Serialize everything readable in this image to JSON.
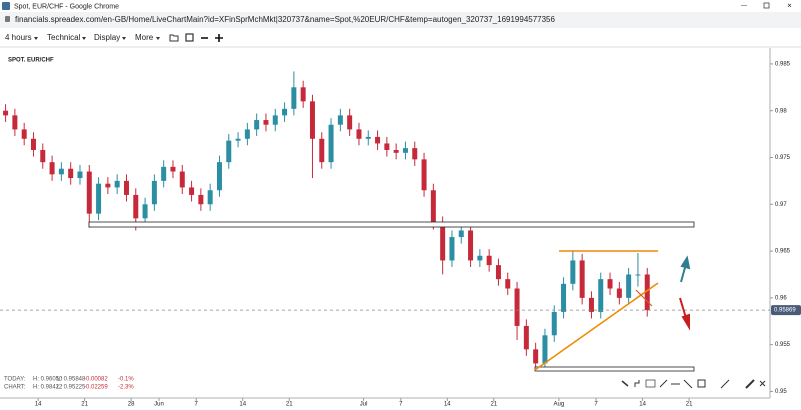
{
  "window": {
    "title": "Spot, EUR/CHF - Google Chrome",
    "url": "financials.spreadex.com/en-GB/Home/LiveChartMain?id=XFinSprMchMkt|320737&name=Spot,%20EUR/CHF&temp=autogen_320737_1691994577356"
  },
  "toolbar": {
    "interval": "4 hours",
    "technical": "Technical",
    "display": "Display",
    "more": "More"
  },
  "info_box": {
    "rows": [
      [
        "TODAY:",
        "H: 0.96050",
        "L: 0.95848",
        "-0.00082",
        "-0.1%"
      ],
      [
        "CHART:",
        "H: 0.98422",
        "L: 0.95225",
        "-0.02259",
        "-2.3%"
      ]
    ]
  },
  "chart_data": {
    "type": "candlestick",
    "title": "SPOT. EUR/CHF",
    "up_color": "#2b8ea3",
    "down_color": "#c62a3a",
    "x": [
      0,
      1,
      2,
      3,
      4,
      5,
      6,
      7,
      8,
      9,
      10,
      11,
      12,
      13,
      14,
      15,
      16,
      17,
      18,
      19,
      20,
      21,
      22,
      23,
      24,
      25,
      26,
      27,
      28,
      29,
      30,
      31,
      32,
      33,
      34,
      35,
      36,
      37,
      38,
      39,
      40,
      41,
      42,
      43,
      44,
      45,
      46,
      47,
      48,
      49,
      50,
      51,
      52,
      53,
      54,
      55,
      56,
      57,
      58,
      59,
      60,
      61,
      62,
      63,
      64,
      65,
      66,
      67,
      68,
      69
    ],
    "open": [
      0.98,
      0.9795,
      0.978,
      0.977,
      0.9758,
      0.9745,
      0.9732,
      0.9738,
      0.9728,
      0.9735,
      0.969,
      0.9722,
      0.9718,
      0.9725,
      0.971,
      0.9685,
      0.97,
      0.9725,
      0.974,
      0.9735,
      0.9718,
      0.971,
      0.97,
      0.9715,
      0.9745,
      0.9768,
      0.977,
      0.978,
      0.979,
      0.9785,
      0.9795,
      0.9802,
      0.9825,
      0.981,
      0.977,
      0.9745,
      0.9785,
      0.9795,
      0.978,
      0.977,
      0.9772,
      0.9765,
      0.9758,
      0.9755,
      0.976,
      0.9748,
      0.9715,
      0.968,
      0.964,
      0.9665,
      0.9672,
      0.964,
      0.9645,
      0.9635,
      0.962,
      0.961,
      0.957,
      0.9545,
      0.953,
      0.956,
      0.9585,
      0.9615,
      0.964,
      0.96,
      0.9585,
      0.962,
      0.961,
      0.96,
      0.9625,
      0.9625
    ],
    "high": [
      0.9807,
      0.9802,
      0.9787,
      0.9777,
      0.9765,
      0.9752,
      0.9745,
      0.9745,
      0.9742,
      0.9742,
      0.9729,
      0.9729,
      0.9732,
      0.9732,
      0.9717,
      0.9707,
      0.9732,
      0.9747,
      0.9747,
      0.9742,
      0.9725,
      0.9717,
      0.9722,
      0.9752,
      0.9775,
      0.9777,
      0.9787,
      0.9797,
      0.9797,
      0.9802,
      0.9809,
      0.9842,
      0.9832,
      0.9817,
      0.9777,
      0.9792,
      0.9802,
      0.9802,
      0.9787,
      0.9779,
      0.9779,
      0.9772,
      0.9765,
      0.9767,
      0.9767,
      0.9755,
      0.9722,
      0.9687,
      0.9672,
      0.9679,
      0.9679,
      0.9652,
      0.9652,
      0.9642,
      0.9627,
      0.9617,
      0.9577,
      0.9552,
      0.9567,
      0.9592,
      0.9622,
      0.965,
      0.9647,
      0.9607,
      0.9627,
      0.9627,
      0.9617,
      0.9632,
      0.9648,
      0.9632
    ],
    "low": [
      0.9788,
      0.9773,
      0.9763,
      0.9751,
      0.9738,
      0.9725,
      0.9725,
      0.9721,
      0.9721,
      0.9675,
      0.9683,
      0.9711,
      0.9711,
      0.9703,
      0.9672,
      0.9678,
      0.9693,
      0.9718,
      0.9728,
      0.9711,
      0.9703,
      0.9693,
      0.9693,
      0.9708,
      0.9738,
      0.9761,
      0.9763,
      0.9773,
      0.9778,
      0.9778,
      0.9788,
      0.9795,
      0.9803,
      0.9728,
      0.9738,
      0.9738,
      0.9778,
      0.9773,
      0.9763,
      0.9763,
      0.9758,
      0.9751,
      0.9748,
      0.9748,
      0.9741,
      0.9708,
      0.9673,
      0.9625,
      0.9633,
      0.9658,
      0.9633,
      0.9633,
      0.9628,
      0.9613,
      0.9603,
      0.9555,
      0.9538,
      0.95225,
      0.9523,
      0.9553,
      0.9578,
      0.9608,
      0.9593,
      0.9578,
      0.9578,
      0.9603,
      0.9593,
      0.9593,
      0.9612,
      0.958
    ],
    "close": [
      0.9795,
      0.978,
      0.977,
      0.9758,
      0.9745,
      0.9732,
      0.9738,
      0.9728,
      0.9735,
      0.969,
      0.9722,
      0.9718,
      0.9725,
      0.971,
      0.9685,
      0.97,
      0.9725,
      0.974,
      0.9735,
      0.9718,
      0.971,
      0.97,
      0.9715,
      0.9745,
      0.9768,
      0.977,
      0.978,
      0.979,
      0.9785,
      0.9795,
      0.9802,
      0.9825,
      0.981,
      0.977,
      0.9745,
      0.9785,
      0.9795,
      0.978,
      0.977,
      0.9772,
      0.9765,
      0.9758,
      0.9755,
      0.976,
      0.9748,
      0.9715,
      0.968,
      0.964,
      0.9665,
      0.9672,
      0.964,
      0.9645,
      0.9635,
      0.962,
      0.961,
      0.957,
      0.9545,
      0.953,
      0.956,
      0.9585,
      0.9615,
      0.964,
      0.96,
      0.9585,
      0.962,
      0.961,
      0.96,
      0.9625,
      0.9625,
      0.95869
    ],
    "xlim": [
      -0.6,
      82.2
    ],
    "xticks": [
      {
        "value": 3.5,
        "label": "14"
      },
      {
        "value": 8.5,
        "label": "21"
      },
      {
        "value": 13.5,
        "label": "28"
      },
      {
        "value": 16.5,
        "label": "Jun"
      },
      {
        "value": 20.5,
        "label": "7"
      },
      {
        "value": 25.5,
        "label": "14"
      },
      {
        "value": 30.5,
        "label": "21"
      },
      {
        "value": 38.5,
        "label": "Jul"
      },
      {
        "value": 42.5,
        "label": "7"
      },
      {
        "value": 47.5,
        "label": "14"
      },
      {
        "value": 52.5,
        "label": "21"
      },
      {
        "value": 59.5,
        "label": "Aug"
      },
      {
        "value": 63.5,
        "label": "7"
      },
      {
        "value": 68.5,
        "label": "14"
      },
      {
        "value": 73.5,
        "label": "21"
      }
    ],
    "ylim": [
      0.9493,
      0.9867
    ],
    "yticks": [
      0.95,
      0.955,
      0.96,
      0.965,
      0.97,
      0.975,
      0.98,
      0.985
    ],
    "grid": false
  }
}
